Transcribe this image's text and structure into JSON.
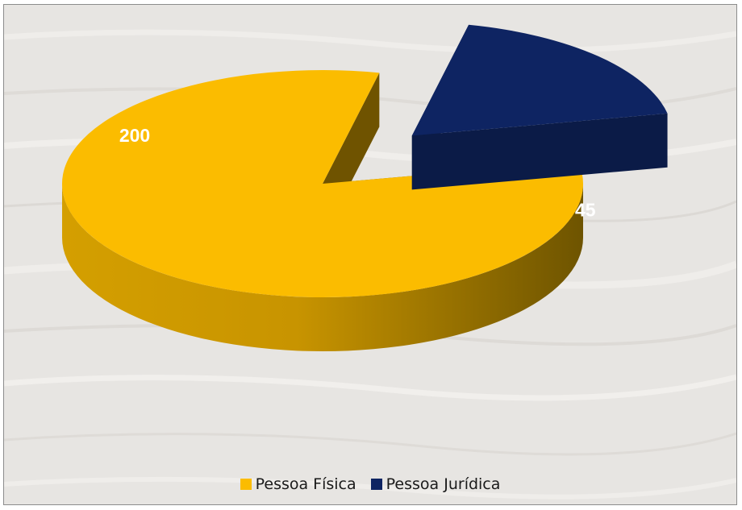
{
  "chart_data": {
    "type": "pie",
    "title": "",
    "categories": [
      "Pessoa Física",
      "Pessoa Jurídica"
    ],
    "values": [
      200,
      45
    ],
    "data_labels": [
      "200",
      "45"
    ],
    "legend_position": "bottom",
    "exploded": "Pessoa Jurídica",
    "three_d": true
  },
  "colors": {
    "pessoa_fisica": "#fbbc00",
    "pessoa_juridica": "#0e2462",
    "background": "#e8e6e3"
  },
  "legend": {
    "items": [
      {
        "label": "Pessoa Física",
        "color": "#fbbc00"
      },
      {
        "label": "Pessoa Jurídica",
        "color": "#0e2462"
      }
    ]
  }
}
